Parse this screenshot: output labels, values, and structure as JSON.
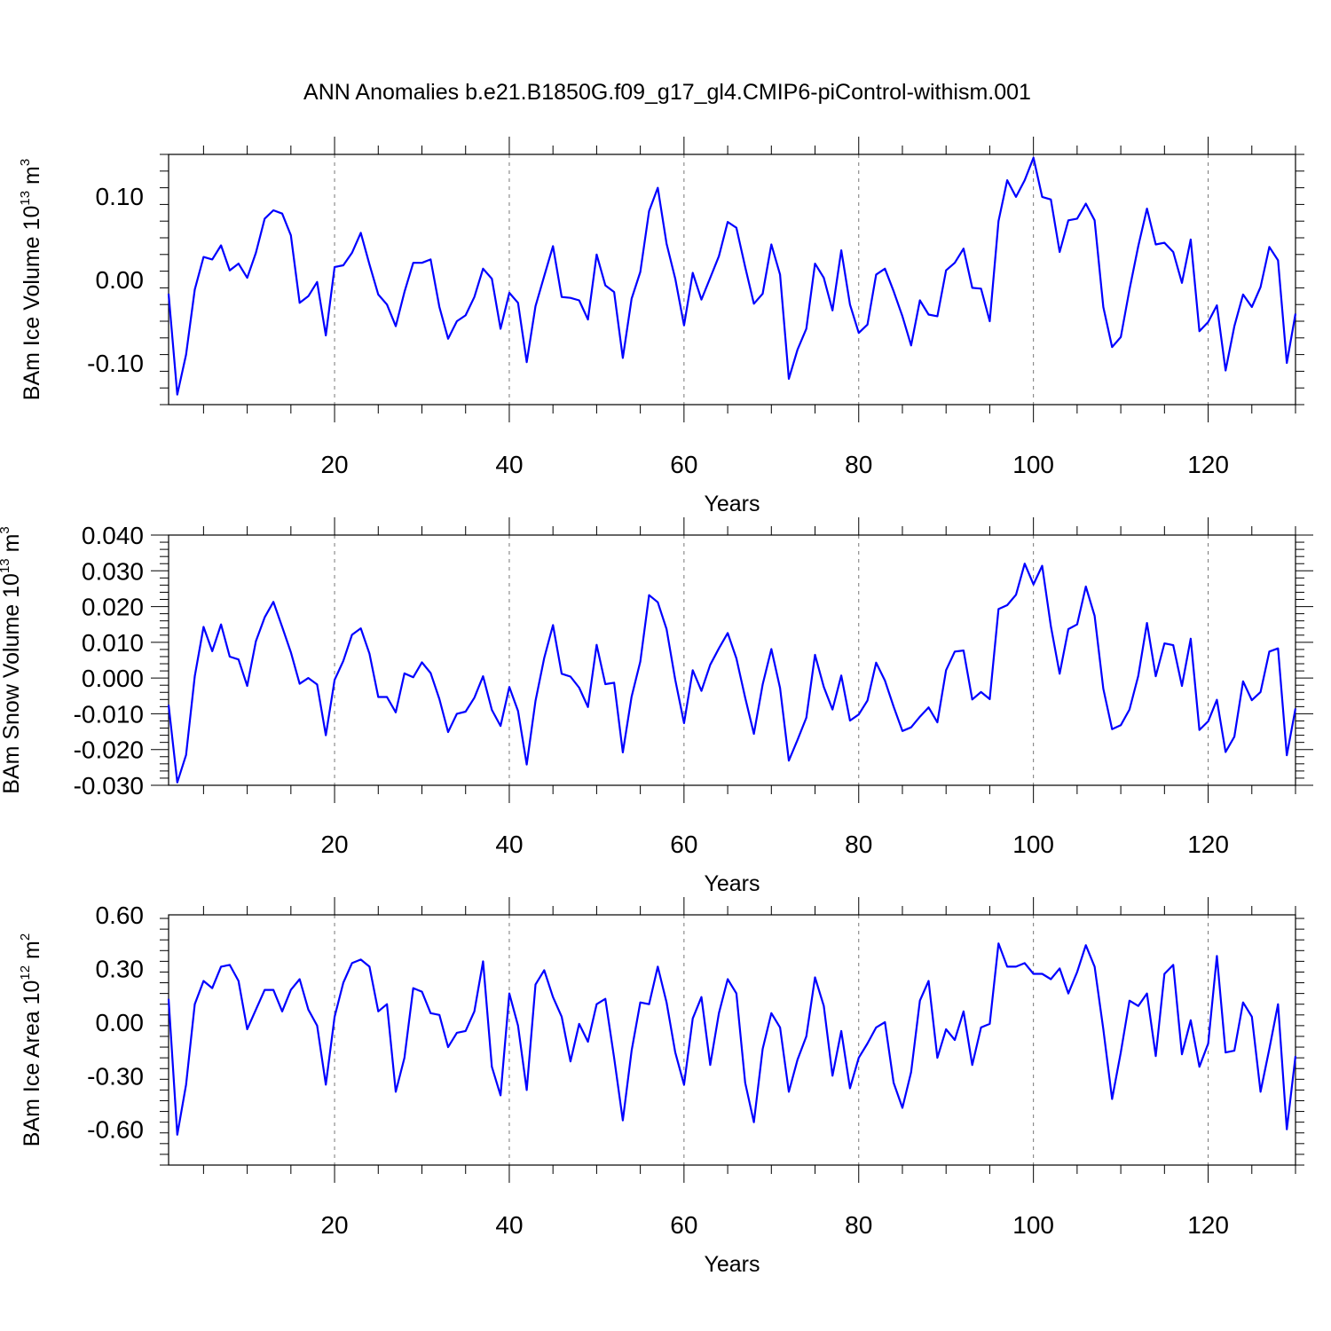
{
  "figure_title": "ANN Anomalies b.e21.B1850G.f09_g17_gl4.CMIP6-piControl-withism.001",
  "chart_data": [
    {
      "type": "line",
      "ylabel_main": "BAm Ice Volume 10",
      "ylabel_exp": "13",
      "ylabel_unit": " m",
      "ylabel_unit_exp": "3",
      "xlabel": "Years",
      "xlim": [
        1,
        130
      ],
      "ylim": [
        -0.15,
        0.15
      ],
      "xticks": [
        20,
        40,
        60,
        80,
        100,
        120
      ],
      "xtick_labels": [
        "20",
        "40",
        "60",
        "80",
        "100",
        "120"
      ],
      "yticks": [
        -0.1,
        0.0,
        0.1
      ],
      "ytick_labels": [
        "-0.10",
        "0.00",
        "0.10"
      ],
      "series": [
        {
          "color": "#0000ff",
          "values": [
            -0.017,
            -0.138,
            -0.09,
            -0.012,
            0.027,
            0.024,
            0.041,
            0.011,
            0.019,
            0.002,
            0.032,
            0.073,
            0.083,
            0.079,
            0.053,
            -0.028,
            -0.02,
            -0.003,
            -0.067,
            0.015,
            0.017,
            0.032,
            0.056,
            0.018,
            -0.018,
            -0.03,
            -0.056,
            -0.015,
            0.02,
            0.02,
            0.024,
            -0.033,
            -0.071,
            -0.05,
            -0.043,
            -0.021,
            0.013,
            0.001,
            -0.059,
            -0.016,
            -0.028,
            -0.099,
            -0.032,
            0.004,
            0.04,
            -0.021,
            -0.022,
            -0.025,
            -0.048,
            0.03,
            -0.007,
            -0.015,
            -0.094,
            -0.023,
            0.009,
            0.082,
            0.11,
            0.043,
            0.001,
            -0.055,
            0.008,
            -0.024,
            0.002,
            0.028,
            0.069,
            0.062,
            0.015,
            -0.029,
            -0.017,
            0.042,
            0.006,
            -0.119,
            -0.084,
            -0.059,
            0.019,
            0.002,
            -0.037,
            0.035,
            -0.03,
            -0.064,
            -0.054,
            0.006,
            0.013,
            -0.014,
            -0.044,
            -0.079,
            -0.025,
            -0.042,
            -0.044,
            0.011,
            0.02,
            0.037,
            -0.01,
            -0.011,
            -0.05,
            0.07,
            0.119,
            0.099,
            0.119,
            0.146,
            0.099,
            0.096,
            0.033,
            0.071,
            0.073,
            0.091,
            0.071,
            -0.033,
            -0.081,
            -0.069,
            -0.012,
            0.04,
            0.085,
            0.042,
            0.044,
            0.033,
            -0.004,
            0.048,
            -0.062,
            -0.051,
            -0.031,
            -0.109,
            -0.056,
            -0.018,
            -0.033,
            -0.009,
            0.039,
            0.023,
            -0.1,
            -0.041
          ]
        }
      ]
    },
    {
      "type": "line",
      "ylabel_main": "BAm Snow Volume 10",
      "ylabel_exp": "13",
      "ylabel_unit": " m",
      "ylabel_unit_exp": "3",
      "xlabel": "Years",
      "xlim": [
        1,
        130
      ],
      "ylim": [
        -0.03,
        0.04
      ],
      "xticks": [
        20,
        40,
        60,
        80,
        100,
        120
      ],
      "xtick_labels": [
        "20",
        "40",
        "60",
        "80",
        "100",
        "120"
      ],
      "yticks": [
        -0.03,
        -0.02,
        -0.01,
        0.0,
        0.01,
        0.02,
        0.03,
        0.04
      ],
      "ytick_labels": [
        "-0.030",
        "-0.020",
        "-0.010",
        "0.000",
        "0.010",
        "0.020",
        "0.030",
        "0.040"
      ],
      "series": [
        {
          "color": "#0000ff",
          "values": [
            -0.0075,
            -0.0292,
            -0.0215,
            0.0005,
            0.0143,
            0.0075,
            0.015,
            0.006,
            0.0052,
            -0.0022,
            0.0103,
            0.017,
            0.0213,
            0.0143,
            0.0072,
            -0.0016,
            0.0,
            -0.0018,
            -0.016,
            -0.0005,
            0.0048,
            0.0121,
            0.0139,
            0.0068,
            -0.0053,
            -0.0053,
            -0.0096,
            0.0013,
            0.0002,
            0.0044,
            0.0014,
            -0.0059,
            -0.0151,
            -0.01,
            -0.0094,
            -0.0055,
            0.0005,
            -0.0089,
            -0.0134,
            -0.0025,
            -0.0092,
            -0.0242,
            -0.0064,
            0.0056,
            0.0148,
            0.0012,
            0.0004,
            -0.0027,
            -0.0081,
            0.0093,
            -0.0017,
            -0.0013,
            -0.0208,
            -0.0052,
            0.0046,
            0.0232,
            0.0212,
            0.0137,
            -0.0005,
            -0.0126,
            0.0022,
            -0.0036,
            0.0037,
            0.0083,
            0.0126,
            0.0055,
            -0.0055,
            -0.0156,
            -0.0018,
            0.0081,
            -0.0028,
            -0.0231,
            -0.0173,
            -0.0111,
            0.0065,
            -0.0025,
            -0.0088,
            0.0007,
            -0.0119,
            -0.0102,
            -0.0063,
            0.0043,
            -0.0007,
            -0.008,
            -0.0148,
            -0.0138,
            -0.0108,
            -0.0082,
            -0.0124,
            0.0022,
            0.0074,
            0.0077,
            -0.006,
            -0.0039,
            -0.0059,
            0.0193,
            0.0204,
            0.0233,
            0.032,
            0.0262,
            0.0314,
            0.0145,
            0.0012,
            0.0137,
            0.015,
            0.0256,
            0.0174,
            -0.003,
            -0.0143,
            -0.0132,
            -0.0088,
            0.0006,
            0.0154,
            0.0005,
            0.0097,
            0.0092,
            -0.0022,
            0.011,
            -0.0145,
            -0.0121,
            -0.0061,
            -0.0207,
            -0.0164,
            -0.0009,
            -0.0062,
            -0.0039,
            0.0074,
            0.0083,
            -0.0216,
            -0.0085
          ]
        }
      ]
    },
    {
      "type": "line",
      "ylabel_main": "BAm Ice Area 10",
      "ylabel_exp": "12",
      "ylabel_unit": " m",
      "ylabel_unit_exp": "2",
      "xlabel": "Years",
      "xlim": [
        1,
        130
      ],
      "ylim": [
        -0.8,
        0.6
      ],
      "xticks": [
        20,
        40,
        60,
        80,
        100,
        120
      ],
      "xtick_labels": [
        "20",
        "40",
        "60",
        "80",
        "100",
        "120"
      ],
      "yticks": [
        -0.6,
        -0.3,
        0.0,
        0.3,
        0.6
      ],
      "ytick_labels": [
        "-0.60",
        "-0.30",
        "0.00",
        "0.30",
        "0.60"
      ],
      "series": [
        {
          "color": "#0000ff",
          "values": [
            0.13,
            -0.63,
            -0.35,
            0.1,
            0.23,
            0.19,
            0.31,
            0.32,
            0.23,
            -0.04,
            0.07,
            0.18,
            0.18,
            0.06,
            0.18,
            0.24,
            0.07,
            -0.02,
            -0.35,
            0.03,
            0.22,
            0.33,
            0.35,
            0.31,
            0.06,
            0.1,
            -0.39,
            -0.2,
            0.19,
            0.17,
            0.05,
            0.04,
            -0.14,
            -0.06,
            -0.05,
            0.06,
            0.34,
            -0.25,
            -0.41,
            0.16,
            -0.02,
            -0.38,
            0.21,
            0.29,
            0.14,
            0.03,
            -0.22,
            -0.01,
            -0.11,
            0.1,
            0.13,
            -0.2,
            -0.55,
            -0.16,
            0.11,
            0.1,
            0.31,
            0.11,
            -0.17,
            -0.35,
            0.02,
            0.14,
            -0.24,
            0.05,
            0.24,
            0.16,
            -0.34,
            -0.56,
            -0.15,
            0.05,
            -0.03,
            -0.39,
            -0.21,
            -0.08,
            0.25,
            0.09,
            -0.3,
            -0.05,
            -0.37,
            -0.2,
            -0.12,
            -0.03,
            0.0,
            -0.34,
            -0.48,
            -0.28,
            0.12,
            0.23,
            -0.2,
            -0.04,
            -0.1,
            0.06,
            -0.24,
            -0.03,
            -0.01,
            0.44,
            0.31,
            0.31,
            0.33,
            0.27,
            0.27,
            0.24,
            0.3,
            0.16,
            0.28,
            0.43,
            0.31,
            -0.04,
            -0.43,
            -0.17,
            0.12,
            0.09,
            0.16,
            -0.19,
            0.27,
            0.32,
            -0.18,
            0.01,
            -0.25,
            -0.12,
            0.37,
            -0.17,
            -0.16,
            0.11,
            0.03,
            -0.39,
            -0.15,
            0.1,
            -0.6,
            -0.19
          ]
        }
      ]
    }
  ]
}
